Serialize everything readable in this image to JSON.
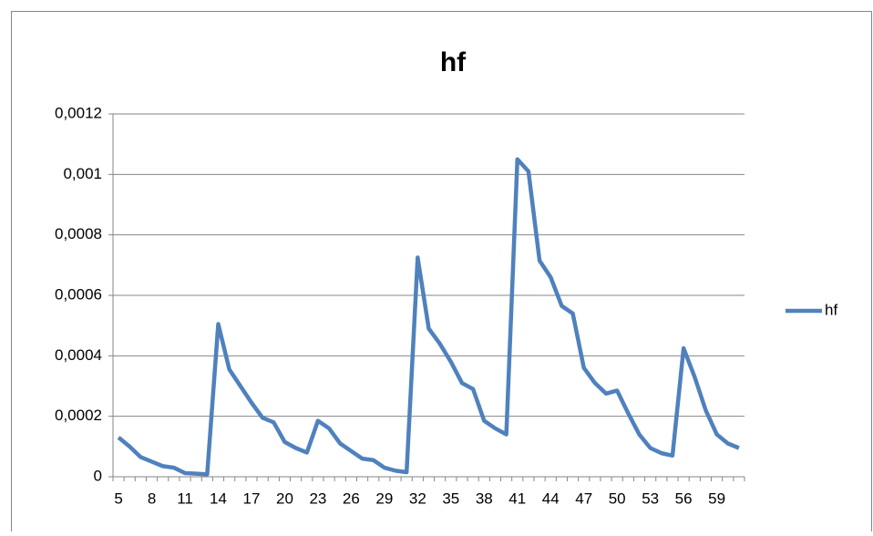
{
  "chart_data": {
    "type": "line",
    "title": "hf",
    "categories": [
      5,
      null,
      null,
      8,
      null,
      null,
      11,
      null,
      null,
      14,
      null,
      null,
      17,
      null,
      null,
      20,
      null,
      null,
      23,
      null,
      null,
      26,
      null,
      null,
      29,
      null,
      null,
      32,
      null,
      null,
      35,
      null,
      null,
      38,
      null,
      null,
      41,
      null,
      null,
      44,
      null,
      null,
      47,
      null,
      null,
      50,
      null,
      null,
      53,
      null,
      null,
      56,
      null,
      null,
      59,
      null,
      null
    ],
    "series": [
      {
        "name": "hf",
        "color": "#4f81bd",
        "values": [
          0.00013,
          0.0001,
          6.5e-05,
          5e-05,
          3.5e-05,
          3e-05,
          1.2e-05,
          1e-05,
          8e-06,
          0.000505,
          0.000355,
          0.0003,
          0.000245,
          0.000195,
          0.00018,
          0.000115,
          9.5e-05,
          8e-05,
          0.000185,
          0.00016,
          0.00011,
          8.5e-05,
          6e-05,
          5.5e-05,
          3e-05,
          2e-05,
          1.5e-05,
          0.000725,
          0.00049,
          0.00044,
          0.00038,
          0.00031,
          0.00029,
          0.000185,
          0.00016,
          0.00014,
          0.00105,
          0.00101,
          0.000715,
          0.00066,
          0.000565,
          0.00054,
          0.00036,
          0.00031,
          0.000275,
          0.000285,
          0.00021,
          0.00014,
          9.5e-05,
          7.8e-05,
          7e-05,
          0.000425,
          0.00033,
          0.00022,
          0.00014,
          0.00011,
          9.5e-05
        ]
      }
    ],
    "ylim": [
      0,
      0.0012
    ],
    "yticks": [
      0,
      {
        "value": 0.0002,
        "label": "0,0002"
      },
      {
        "value": 0.0004,
        "label": "0,0004"
      },
      {
        "value": 0.0006,
        "label": "0,0006"
      },
      {
        "value": 0.0008,
        "label": "0,0008"
      },
      {
        "value": 0.001,
        "label": "0,001"
      },
      {
        "value": 0.0012,
        "label": "0,0012"
      }
    ],
    "grid": true,
    "legend": "right"
  }
}
